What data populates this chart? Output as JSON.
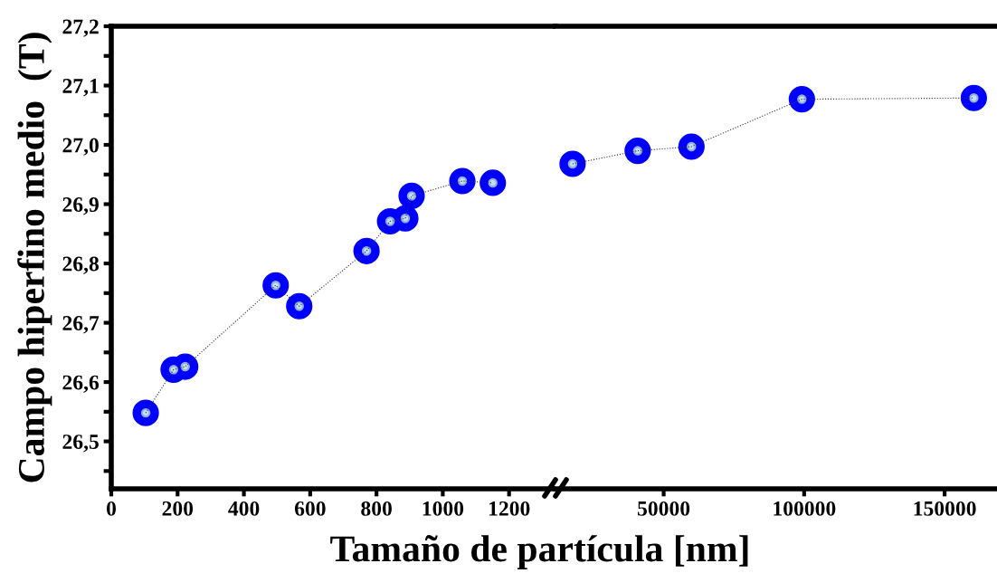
{
  "chart_data": [
    {
      "type": "line",
      "xlabel": "Tamaño de partícula [nm]",
      "ylabel": "Campo hiperfino medio  (T)",
      "series": [
        {
          "color": "#0000ff",
          "x": [
            104,
            188,
            223,
            496,
            567,
            770,
            841,
            887,
            906,
            1059,
            1151
          ],
          "values": [
            26.548,
            26.621,
            26.626,
            26.763,
            26.728,
            26.821,
            26.871,
            26.876,
            26.914,
            26.939,
            26.936
          ]
        }
      ],
      "xlim": [
        0,
        1340
      ],
      "xticks": [
        0,
        200,
        400,
        600,
        800,
        1000,
        1200
      ],
      "ylim": [
        26.42,
        27.2
      ],
      "yticks": [
        {
          "value": 26.45,
          "label": null
        },
        {
          "value": 26.5,
          "label": "26,5"
        },
        {
          "value": 26.55,
          "label": null
        },
        {
          "value": 26.6,
          "label": "26,6"
        },
        {
          "value": 26.65,
          "label": null
        },
        {
          "value": 26.7,
          "label": "26,7"
        },
        {
          "value": 26.75,
          "label": null
        },
        {
          "value": 26.8,
          "label": "26,8"
        },
        {
          "value": 26.85,
          "label": null
        },
        {
          "value": 26.9,
          "label": "26,9"
        },
        {
          "value": 26.95,
          "label": null
        },
        {
          "value": 27.0,
          "label": "27,0"
        },
        {
          "value": 27.05,
          "label": null
        },
        {
          "value": 27.1,
          "label": "27,1"
        },
        {
          "value": 27.15,
          "label": null
        },
        {
          "value": 27.2,
          "label": "27,2"
        }
      ],
      "marker": "circle",
      "line_style": "dotted",
      "grid": false,
      "legend": false
    },
    {
      "type": "line",
      "series": [
        {
          "color": "#0000ff",
          "x": [
            17580,
            40755,
            59900,
            99200,
            160400
          ],
          "values": [
            26.968,
            26.99,
            26.997,
            27.077,
            27.079
          ]
        }
      ],
      "xlim": [
        11500,
        168000
      ],
      "xticks": [
        50000,
        100000,
        150000
      ],
      "ylim": [
        26.42,
        27.2
      ],
      "tick_labels": "x",
      "marker": "circle",
      "line_style": "dotted",
      "grid": false,
      "legend": false
    }
  ]
}
